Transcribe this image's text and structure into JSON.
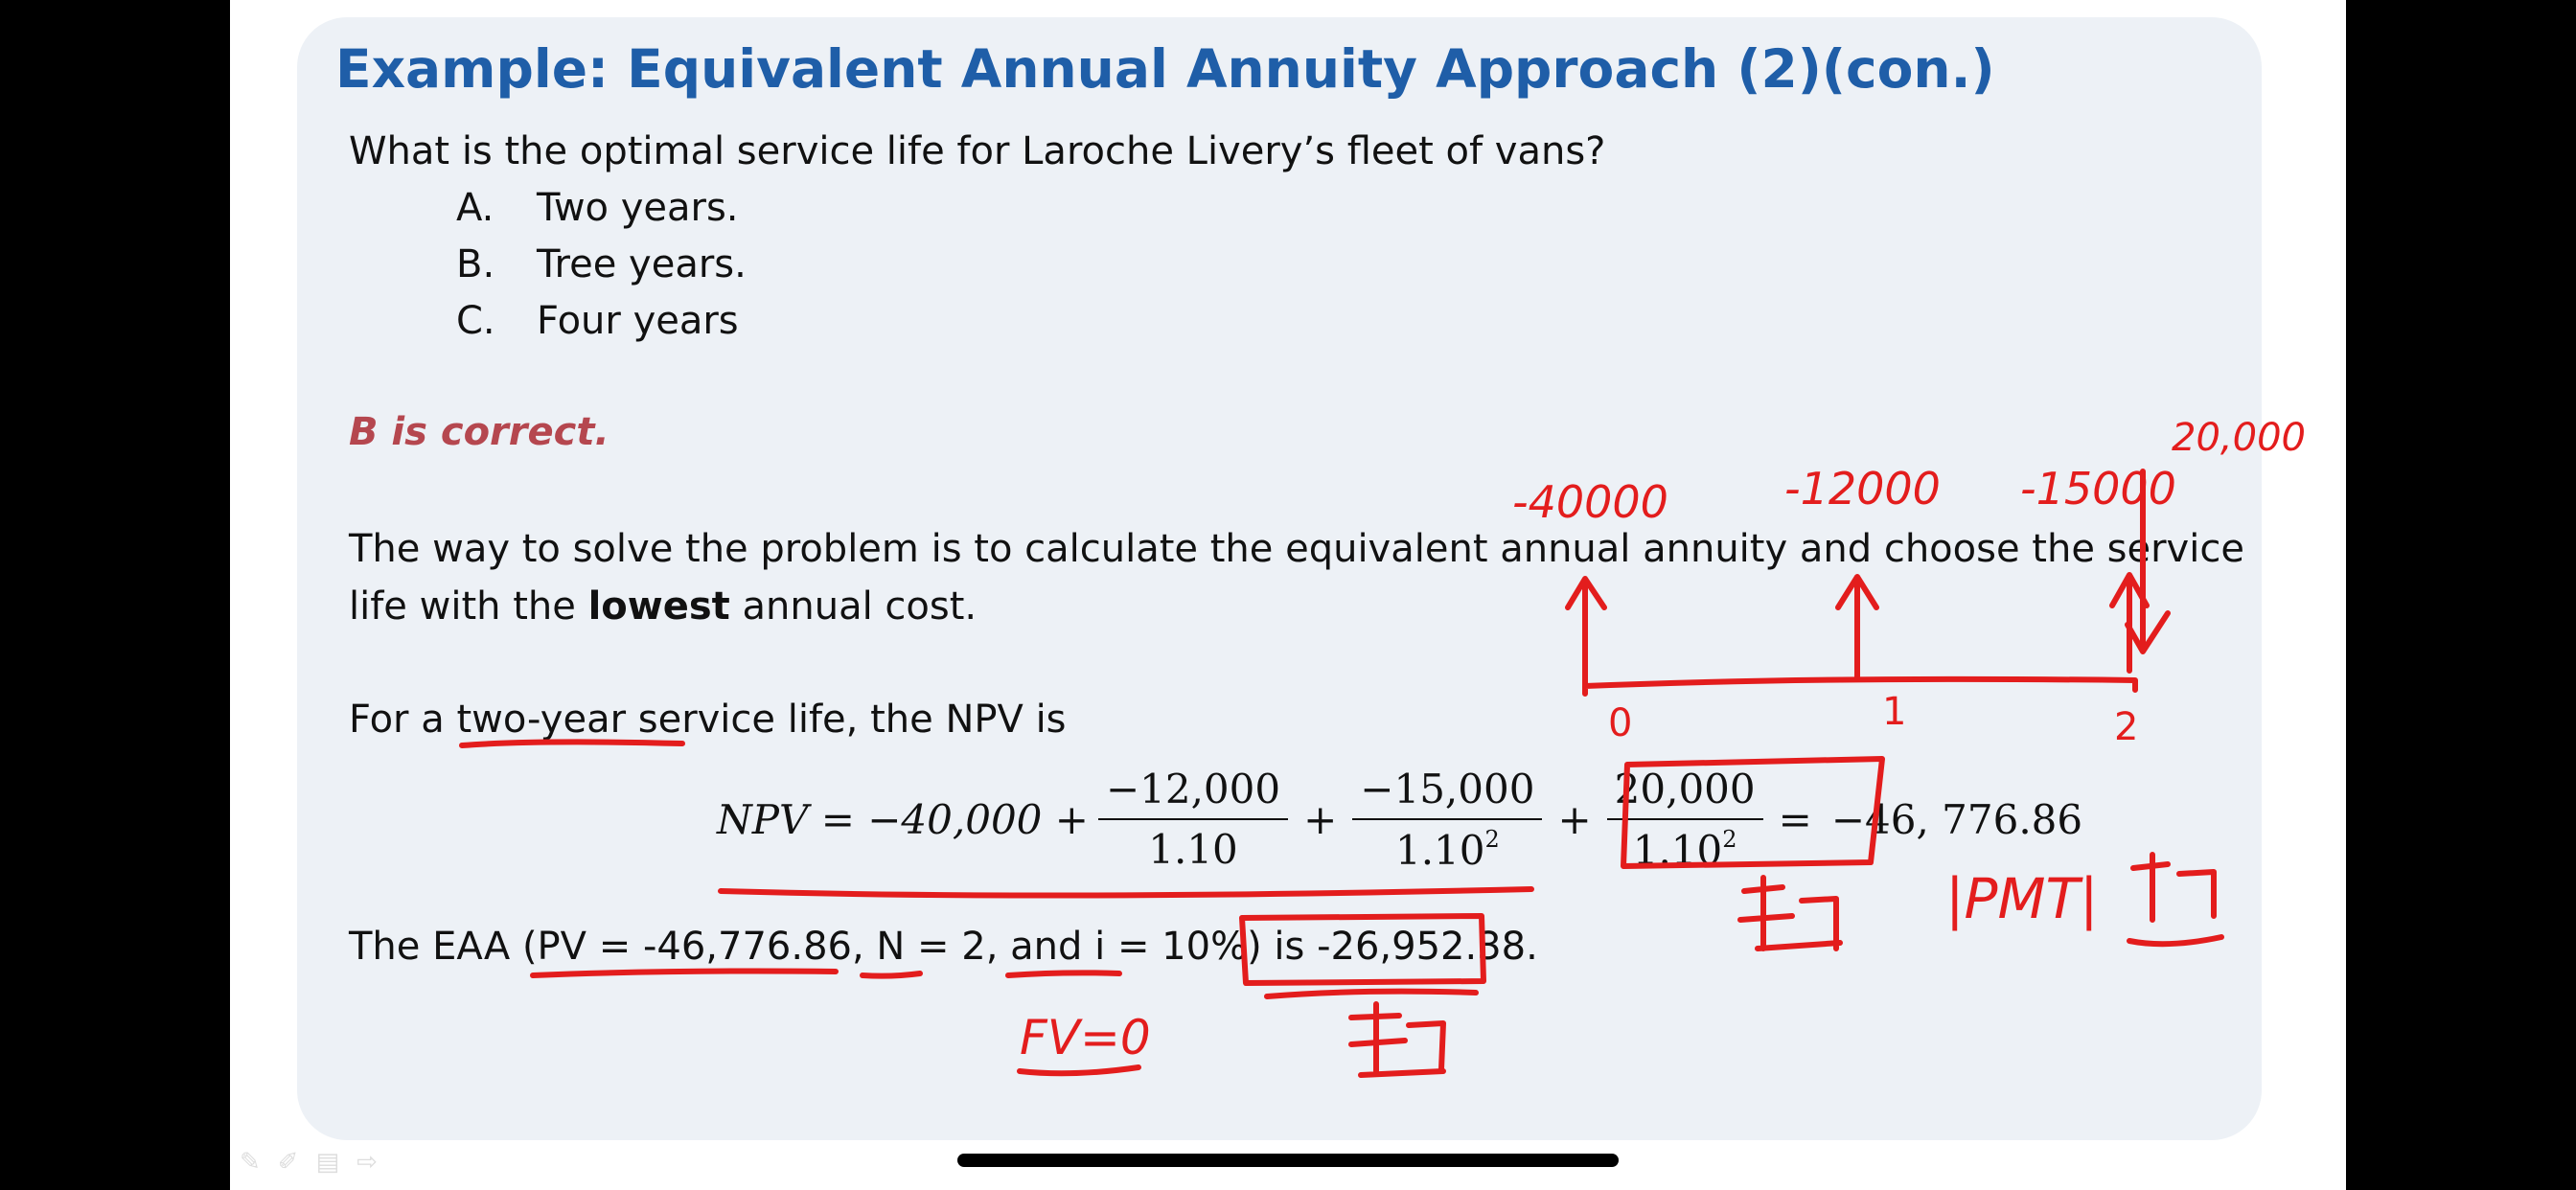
{
  "slide": {
    "title": "Example: Equivalent Annual Annuity Approach (2)(con.)",
    "question": "What is the optimal service life for Laroche Livery’s fleet of vans?",
    "options": [
      {
        "letter": "A.",
        "text": "Two years."
      },
      {
        "letter": "B.",
        "text": "Tree years."
      },
      {
        "letter": "C.",
        "text": "Four years"
      }
    ],
    "answer": "B is correct.",
    "explanation_line1": "The way to solve the problem is to calculate the equivalent annual annuity and choose the service",
    "explanation_line2_pre": "life with the ",
    "explanation_line2_bold": "lowest",
    "explanation_line2_post": " annual cost.",
    "npv_intro": "For a two-year service life, the NPV is",
    "equation": {
      "lhs": "NPV = −40,000 +",
      "frac1_num": "−12,000",
      "frac1_den": "1.10",
      "frac2_num": "−15,000",
      "frac2_den": "1.10",
      "frac2_exp": "2",
      "frac3_num": "20,000",
      "frac3_den": "1.10",
      "frac3_exp": "2",
      "plus": "+",
      "equals": "=",
      "result": "−46, 776.86"
    },
    "eaa_line": "The EAA (PV = -46,776.86,  N = 2, and i = 10%) is -26,952.38."
  },
  "annotations": {
    "cf0": "-40000",
    "cf1": "-12000",
    "cf2": "-15000",
    "cf3": "20,000",
    "t0": "0",
    "t1": "1",
    "t2": "2",
    "pmt_note": "|PMT|",
    "fv_note": "FV=0",
    "color": "#e31d1d"
  },
  "presenter_tools": [
    "✎",
    "✐",
    "▤",
    "⇨"
  ]
}
